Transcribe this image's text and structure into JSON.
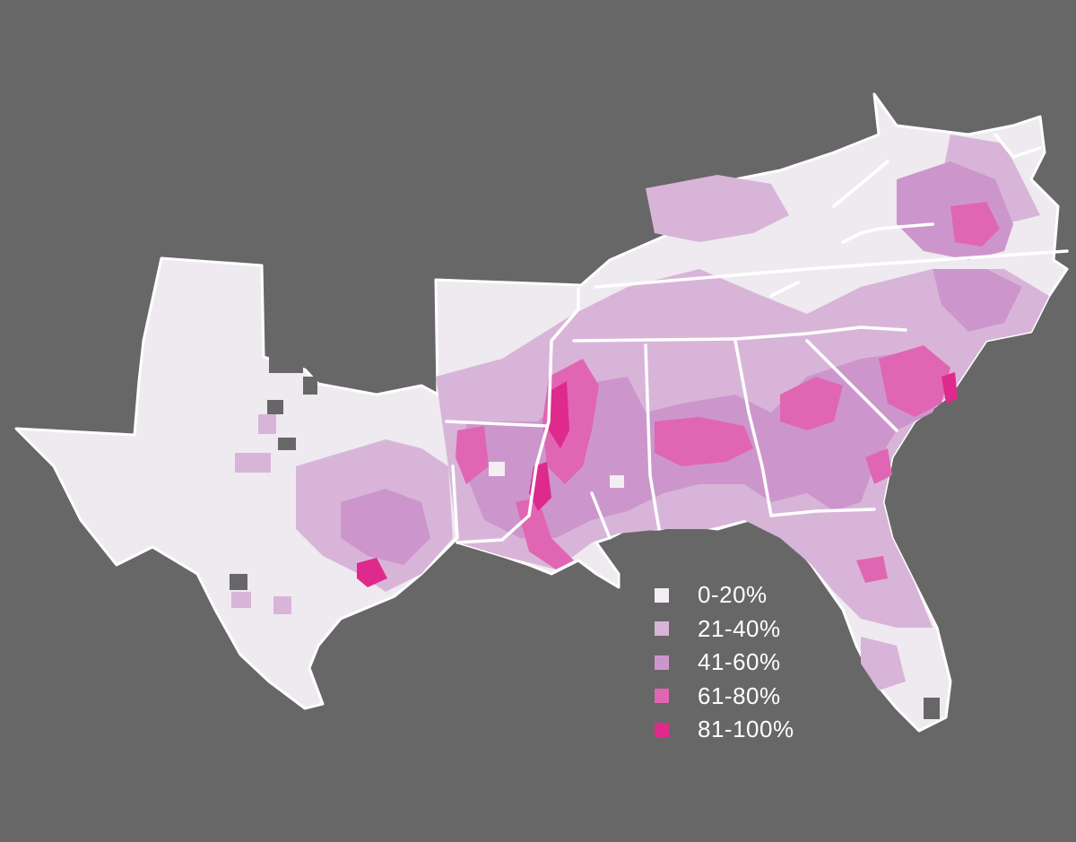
{
  "legend": [
    {
      "label": "0-20%",
      "color": "#f2eef4"
    },
    {
      "label": "21-40%",
      "color": "#d8b5d8"
    },
    {
      "label": "41-60%",
      "color": "#cc96cc"
    },
    {
      "label": "61-80%",
      "color": "#e066b4"
    },
    {
      "label": "81-100%",
      "color": "#de2a8c"
    }
  ]
}
